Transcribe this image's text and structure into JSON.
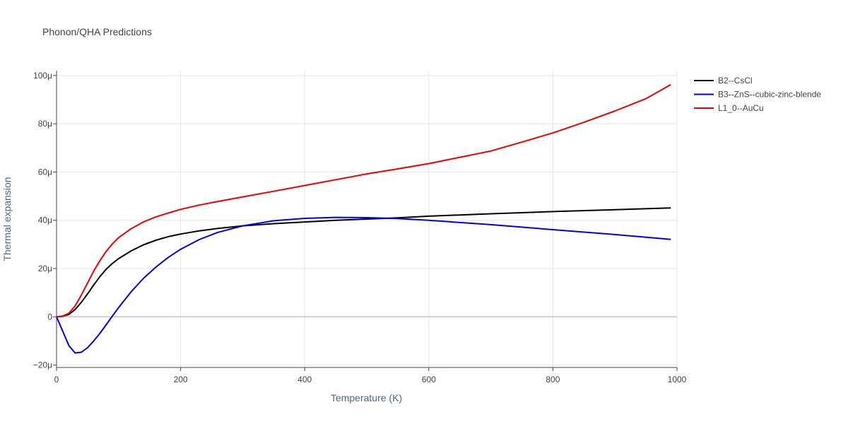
{
  "chart_data": {
    "type": "line",
    "title": "Phonon/QHA Predictions",
    "xlabel": "Temperature (K)",
    "ylabel": "Thermal expansion",
    "xlim": [
      0,
      1000
    ],
    "ylim": [
      -21,
      102
    ],
    "x_ticks": [
      0,
      200,
      400,
      600,
      800,
      1000
    ],
    "y_ticks": [
      -20,
      0,
      20,
      40,
      60,
      80,
      100
    ],
    "y_tick_labels": [
      "−20μ",
      "0",
      "20μ",
      "40μ",
      "60μ",
      "80μ",
      "100μ"
    ],
    "x_tick_labels": [
      "0",
      "200",
      "400",
      "600",
      "800",
      "1000"
    ],
    "grid": true,
    "legend_position": "top-right",
    "series": [
      {
        "name": "B2--CsCl",
        "color": "#000000",
        "x": [
          0,
          10,
          20,
          30,
          40,
          50,
          60,
          70,
          80,
          90,
          100,
          120,
          140,
          160,
          180,
          200,
          230,
          260,
          300,
          350,
          400,
          450,
          500,
          550,
          600,
          650,
          700,
          800,
          900,
          990
        ],
        "y": [
          0,
          0.2,
          1.0,
          3.0,
          6.0,
          9.5,
          13.2,
          16.7,
          19.7,
          22.1,
          24.1,
          27.3,
          29.8,
          31.7,
          33.2,
          34.3,
          35.6,
          36.6,
          37.7,
          38.6,
          39.3,
          40.0,
          40.5,
          41.0,
          41.7,
          42.2,
          42.7,
          43.6,
          44.4,
          45.1
        ]
      },
      {
        "name": "B3--ZnS--cubic-zinc-blende",
        "color": "#0000ee",
        "x": [
          0,
          10,
          20,
          30,
          40,
          50,
          60,
          70,
          80,
          90,
          100,
          120,
          140,
          160,
          180,
          200,
          230,
          260,
          300,
          350,
          400,
          450,
          500,
          550,
          600,
          700,
          800,
          900,
          990
        ],
        "y": [
          0,
          -6,
          -12,
          -15,
          -14.7,
          -12.8,
          -10,
          -6.8,
          -3.3,
          0.3,
          3.8,
          10.3,
          15.9,
          20.6,
          24.6,
          28.0,
          32.0,
          35.0,
          37.7,
          39.8,
          40.8,
          41.2,
          41.1,
          40.7,
          40.0,
          38.2,
          36.1,
          34.1,
          32.1
        ]
      },
      {
        "name": "L1_0--AuCu",
        "color": "#ee0000",
        "x": [
          0,
          10,
          20,
          30,
          40,
          50,
          60,
          70,
          80,
          90,
          100,
          120,
          140,
          160,
          180,
          200,
          230,
          260,
          300,
          350,
          400,
          450,
          500,
          550,
          600,
          650,
          700,
          750,
          800,
          850,
          900,
          950,
          990
        ],
        "y": [
          0,
          0.3,
          1.5,
          4.5,
          9.0,
          14.0,
          19.0,
          23.3,
          27.1,
          30.2,
          32.8,
          36.5,
          39.3,
          41.4,
          43.0,
          44.5,
          46.3,
          47.8,
          49.7,
          52.0,
          54.4,
          56.8,
          59.2,
          61.3,
          63.5,
          66.1,
          68.7,
          72.4,
          76.2,
          80.6,
          85.3,
          90.4,
          96.2
        ]
      }
    ]
  }
}
